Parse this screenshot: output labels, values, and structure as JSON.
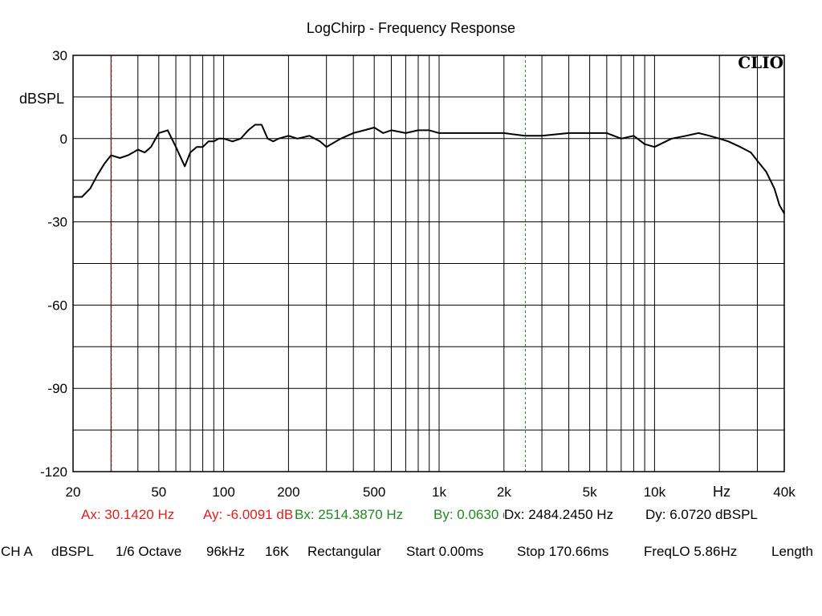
{
  "chart_data": {
    "type": "line",
    "title": "LogChirp - Frequency Response",
    "ylabel": "dBSPL",
    "xlabel": "Hz",
    "xscale": "log",
    "xlim": [
      20,
      40000
    ],
    "ylim": [
      -120,
      30
    ],
    "grid": true,
    "watermark": "CLIO",
    "y_ticks": [
      30,
      0,
      -30,
      -60,
      -90,
      -120
    ],
    "x_tick_labels": [
      {
        "value": 20,
        "label": "20"
      },
      {
        "value": 50,
        "label": "50"
      },
      {
        "value": 100,
        "label": "100"
      },
      {
        "value": 200,
        "label": "200"
      },
      {
        "value": 500,
        "label": "500"
      },
      {
        "value": 1000,
        "label": "1k"
      },
      {
        "value": 2000,
        "label": "2k"
      },
      {
        "value": 5000,
        "label": "5k"
      },
      {
        "value": 10000,
        "label": "10k"
      },
      {
        "value": 40000,
        "label": "40k"
      }
    ],
    "line_color": "#000000",
    "series": [
      {
        "x": [
          20,
          22,
          24,
          26,
          28,
          30,
          33,
          36,
          40,
          43,
          46,
          50,
          55,
          60,
          66,
          70,
          75,
          80,
          85,
          90,
          95,
          100,
          110,
          120,
          130,
          140,
          150,
          160,
          170,
          180,
          200,
          220,
          250,
          280,
          300,
          350,
          400,
          450,
          500,
          550,
          600,
          700,
          800,
          900,
          1000,
          1200,
          1500,
          2000,
          2500,
          3000,
          4000,
          5000,
          6000,
          7000,
          8000,
          9000,
          10000,
          12000,
          14000,
          16000,
          18000,
          20000,
          22000,
          25000,
          28000,
          30000,
          33000,
          36000,
          38000,
          40000
        ],
        "y": [
          -21,
          -21,
          -18,
          -13,
          -9,
          -6,
          -7,
          -6,
          -4,
          -5,
          -3,
          2,
          3,
          -3,
          -10,
          -5,
          -3,
          -3,
          -1,
          -1,
          0,
          0,
          -1,
          0,
          3,
          5,
          5,
          0,
          -1,
          0,
          1,
          0,
          1,
          -1,
          -3,
          0,
          2,
          3,
          4,
          2,
          3,
          2,
          3,
          3,
          2,
          2,
          2,
          2,
          1,
          1,
          2,
          2,
          2,
          0,
          1,
          -2,
          -3,
          0,
          1,
          2,
          1,
          0,
          -1,
          -3,
          -5,
          -8,
          -12,
          -18,
          -24,
          -27
        ]
      }
    ]
  },
  "cursors": {
    "ax": "Ax: 30.1420 Hz",
    "ay": "Ay: -6.0091 dBSPL",
    "bx": "Bx: 2514.3870 Hz",
    "by": "By: 0.0630 dBSPL",
    "dx": "Dx: 2484.2450 Hz",
    "dy": "Dy: 6.0720 dBSPL",
    "a_freq": 30.142,
    "b_freq": 2514.387,
    "a_color": "#e0201e",
    "b_color": "#1e8a1e"
  },
  "settings": {
    "channel": "CH A",
    "unit": "dBSPL",
    "smoothing": "1/6 Octave",
    "sample_rate": "96kHz",
    "size": "16K",
    "window": "Rectangular",
    "start": "Start 0.00ms",
    "stop": "Stop 170.66ms",
    "freq_lo": "FreqLO 5.86Hz",
    "length": "Length"
  }
}
